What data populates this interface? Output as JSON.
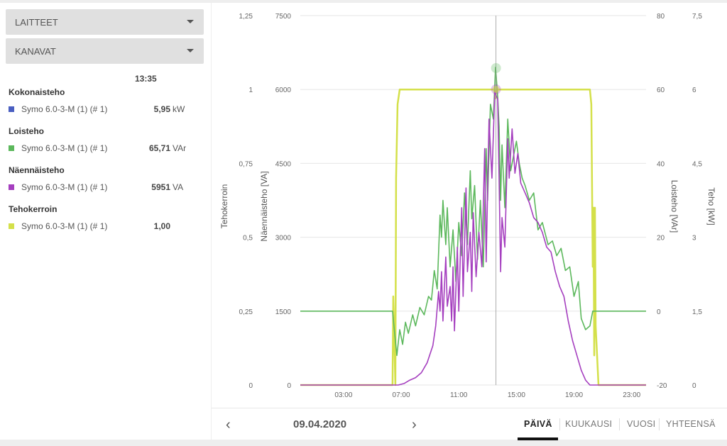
{
  "filters": {
    "devices": "LAITTEET",
    "channels": "KANAVAT"
  },
  "legend": {
    "time": "13:35",
    "groups": [
      {
        "title": "Kokonaisteho",
        "device": "Symo 6.0-3-M (1) (# 1)",
        "value": "5,95",
        "unit": "kW",
        "color": "#4a5fc1"
      },
      {
        "title": "Loisteho",
        "device": "Symo 6.0-3-M (1) (# 1)",
        "value": "65,71",
        "unit": "VAr",
        "color": "#5cb85c"
      },
      {
        "title": "Näennäisteho",
        "device": "Symo 6.0-3-M (1) (# 1)",
        "value": "5951",
        "unit": "VA",
        "color": "#a53fbf"
      },
      {
        "title": "Tehokerroin",
        "device": "Symo 6.0-3-M (1) (# 1)",
        "value": "1,00",
        "unit": "",
        "color": "#d4e04a"
      }
    ]
  },
  "chart_data": {
    "type": "line",
    "cursor_time": "13:35",
    "x_ticks": [
      "03:00",
      "07:00",
      "11:00",
      "15:00",
      "19:00",
      "23:00"
    ],
    "x_range_hours": [
      0,
      24
    ],
    "axes": {
      "tehokerroin": {
        "label": "Tehokerroin",
        "range": [
          0,
          1.25
        ],
        "ticks": [
          "0",
          "0,25",
          "0,5",
          "0,75",
          "1",
          "1,25"
        ]
      },
      "naennaisteho": {
        "label": "Näennäisteho [VA]",
        "range": [
          0,
          7500
        ],
        "ticks": [
          "0",
          "1500",
          "3000",
          "4500",
          "6000",
          "7500"
        ]
      },
      "loisteho": {
        "label": "Loisteho [VAr]",
        "range": [
          -20,
          80
        ],
        "ticks": [
          "-20",
          "0",
          "20",
          "40",
          "60",
          "80"
        ]
      },
      "teho": {
        "label": "Teho [kW]",
        "range": [
          0,
          7.5
        ],
        "ticks": [
          "0",
          "1,5",
          "3",
          "4,5",
          "6",
          "7,5"
        ]
      }
    },
    "series": [
      {
        "name": "Tehokerroin",
        "axis": "tehokerroin",
        "color": "#d4e04a",
        "points": [
          [
            0,
            0
          ],
          [
            6.4,
            0
          ],
          [
            6.45,
            0.3
          ],
          [
            6.5,
            0.22
          ],
          [
            6.55,
            0.1
          ],
          [
            6.6,
            0
          ],
          [
            6.65,
            0.7
          ],
          [
            6.75,
            0.95
          ],
          [
            6.9,
            1
          ],
          [
            13.5,
            1
          ],
          [
            13.55,
            0.97
          ],
          [
            13.6,
            1
          ],
          [
            20.1,
            1
          ],
          [
            20.2,
            0.95
          ],
          [
            20.3,
            0.4
          ],
          [
            20.35,
            0.6
          ],
          [
            20.4,
            0.1
          ],
          [
            20.45,
            0.6
          ],
          [
            20.5,
            0.2
          ],
          [
            20.7,
            0
          ],
          [
            24,
            0
          ]
        ]
      },
      {
        "name": "Loisteho",
        "axis": "loisteho",
        "color": "#5cb85c",
        "points": [
          [
            0,
            0
          ],
          [
            6.4,
            0
          ],
          [
            6.5,
            -4
          ],
          [
            6.6,
            -8
          ],
          [
            6.7,
            -12
          ],
          [
            6.9,
            -5
          ],
          [
            7.1,
            -9
          ],
          [
            7.3,
            -3
          ],
          [
            7.5,
            -6
          ],
          [
            7.8,
            -1
          ],
          [
            8,
            -4
          ],
          [
            8.3,
            1
          ],
          [
            8.6,
            -1
          ],
          [
            8.9,
            4
          ],
          [
            9.1,
            3
          ],
          [
            9.3,
            11
          ],
          [
            9.5,
            6
          ],
          [
            9.7,
            26
          ],
          [
            9.8,
            20
          ],
          [
            9.9,
            30
          ],
          [
            10.1,
            18
          ],
          [
            10.2,
            28
          ],
          [
            10.4,
            12
          ],
          [
            10.6,
            22
          ],
          [
            10.8,
            8
          ],
          [
            11,
            24
          ],
          [
            11.2,
            15
          ],
          [
            11.4,
            32
          ],
          [
            11.6,
            18
          ],
          [
            11.8,
            38
          ],
          [
            11.9,
            25
          ],
          [
            12.1,
            34
          ],
          [
            12.3,
            14
          ],
          [
            12.5,
            30
          ],
          [
            12.7,
            12
          ],
          [
            12.9,
            44
          ],
          [
            13,
            30
          ],
          [
            13.2,
            56
          ],
          [
            13.4,
            52
          ],
          [
            13.55,
            66
          ],
          [
            13.7,
            58
          ],
          [
            13.8,
            50
          ],
          [
            13.9,
            30
          ],
          [
            14,
            45
          ],
          [
            14.2,
            28
          ],
          [
            14.4,
            52
          ],
          [
            14.6,
            38
          ],
          [
            14.8,
            42
          ],
          [
            15,
            46
          ],
          [
            15.2,
            40
          ],
          [
            15.4,
            36
          ],
          [
            15.6,
            34
          ],
          [
            15.9,
            30
          ],
          [
            16.2,
            32
          ],
          [
            16.5,
            22
          ],
          [
            16.8,
            24
          ],
          [
            17.2,
            18
          ],
          [
            17.5,
            19
          ],
          [
            17.8,
            15
          ],
          [
            18.1,
            17
          ],
          [
            18.4,
            11
          ],
          [
            18.7,
            12
          ],
          [
            19,
            4
          ],
          [
            19.3,
            8
          ],
          [
            19.5,
            -2
          ],
          [
            19.8,
            -5
          ],
          [
            20.1,
            -4
          ],
          [
            20.3,
            0
          ],
          [
            24,
            0
          ]
        ]
      },
      {
        "name": "Näennäisteho",
        "axis": "naennaisteho",
        "color": "#a53fbf",
        "points": [
          [
            0,
            0
          ],
          [
            6.8,
            0
          ],
          [
            7.2,
            30
          ],
          [
            7.6,
            100
          ],
          [
            8,
            150
          ],
          [
            8.4,
            250
          ],
          [
            8.8,
            450
          ],
          [
            9.2,
            800
          ],
          [
            9.4,
            1200
          ],
          [
            9.6,
            1900
          ],
          [
            9.7,
            1500
          ],
          [
            9.8,
            2300
          ],
          [
            9.9,
            1300
          ],
          [
            10.1,
            2600
          ],
          [
            10.2,
            1600
          ],
          [
            10.4,
            2000
          ],
          [
            10.5,
            1300
          ],
          [
            10.6,
            2400
          ],
          [
            10.7,
            1100
          ],
          [
            10.9,
            2800
          ],
          [
            11,
            1500
          ],
          [
            11.2,
            3600
          ],
          [
            11.3,
            1800
          ],
          [
            11.5,
            4000
          ],
          [
            11.6,
            2300
          ],
          [
            11.8,
            3100
          ],
          [
            11.9,
            1900
          ],
          [
            12,
            3500
          ],
          [
            12.2,
            2200
          ],
          [
            12.4,
            3100
          ],
          [
            12.6,
            2400
          ],
          [
            12.8,
            4800
          ],
          [
            12.9,
            2500
          ],
          [
            13.1,
            5400
          ],
          [
            13.3,
            4200
          ],
          [
            13.5,
            5950
          ],
          [
            13.7,
            5800
          ],
          [
            13.8,
            4200
          ],
          [
            13.9,
            2300
          ],
          [
            14,
            3400
          ],
          [
            14.2,
            2800
          ],
          [
            14.4,
            5000
          ],
          [
            14.5,
            4200
          ],
          [
            14.7,
            5200
          ],
          [
            14.9,
            4300
          ],
          [
            15.1,
            4700
          ],
          [
            15.3,
            4100
          ],
          [
            15.6,
            3900
          ],
          [
            15.9,
            3700
          ],
          [
            16.2,
            3400
          ],
          [
            16.5,
            3300
          ],
          [
            16.8,
            3100
          ],
          [
            17.1,
            2800
          ],
          [
            17.4,
            2700
          ],
          [
            17.7,
            2300
          ],
          [
            18,
            2000
          ],
          [
            18.3,
            1800
          ],
          [
            18.6,
            1300
          ],
          [
            18.9,
            900
          ],
          [
            19.2,
            600
          ],
          [
            19.5,
            300
          ],
          [
            19.8,
            100
          ],
          [
            20.1,
            0
          ],
          [
            24,
            0
          ]
        ]
      }
    ]
  },
  "footer": {
    "prev": "‹",
    "date": "09.04.2020",
    "next": "›",
    "tabs": [
      "PÄIVÄ",
      "KUUKAUSI",
      "VUOSI",
      "YHTEENSÄ"
    ],
    "active_tab": "PÄIVÄ"
  }
}
